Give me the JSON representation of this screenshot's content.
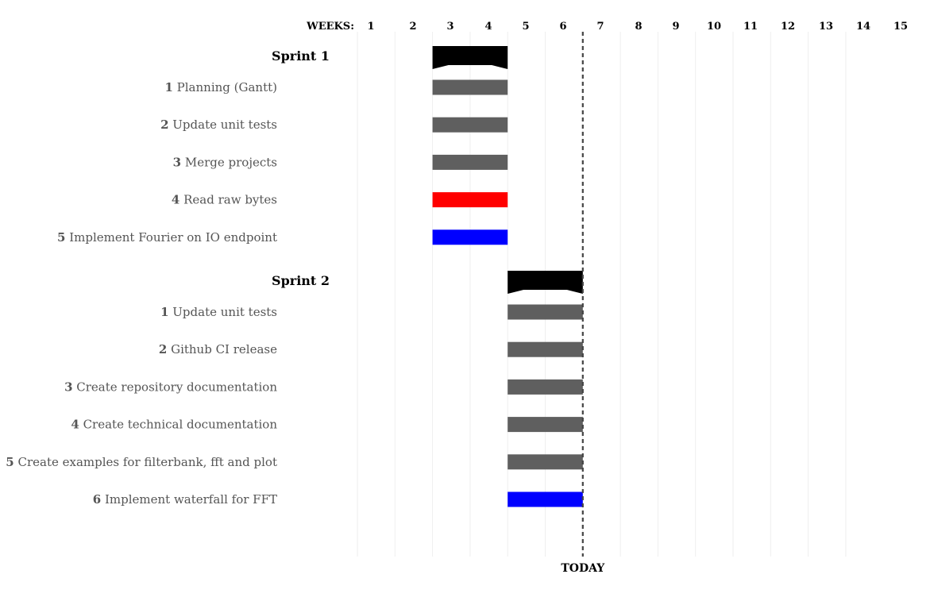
{
  "chart_data": {
    "type": "gantt",
    "x_axis_label": "WEEKS:",
    "weeks": [
      "1",
      "2",
      "3",
      "4",
      "5",
      "6",
      "7",
      "8",
      "9",
      "10",
      "11",
      "12",
      "13",
      "14",
      "15"
    ],
    "today": {
      "label": "TODAY",
      "week": 6.5
    },
    "colors": {
      "group": "#000000",
      "task": "#5f5f5f",
      "red": "#ff0000",
      "blue": "#0000ff",
      "grid": "#eeeeee",
      "today": "#444444"
    },
    "groups": [
      {
        "name": "Sprint 1",
        "start": 2.5,
        "end": 4.5,
        "tasks": [
          {
            "num": "1",
            "name": "Planning (Gantt)",
            "start": 2.5,
            "end": 4.5,
            "color": "#5f5f5f"
          },
          {
            "num": "2",
            "name": "Update unit tests",
            "start": 2.5,
            "end": 4.5,
            "color": "#5f5f5f"
          },
          {
            "num": "3",
            "name": "Merge projects",
            "start": 2.5,
            "end": 4.5,
            "color": "#5f5f5f"
          },
          {
            "num": "4",
            "name": "Read raw bytes",
            "start": 2.5,
            "end": 4.5,
            "color": "#ff0000"
          },
          {
            "num": "5",
            "name": "Implement Fourier on IO endpoint",
            "start": 2.5,
            "end": 4.5,
            "color": "#0000ff"
          }
        ]
      },
      {
        "name": "Sprint 2",
        "start": 4.5,
        "end": 6.5,
        "tasks": [
          {
            "num": "1",
            "name": "Update unit tests",
            "start": 4.5,
            "end": 6.5,
            "color": "#5f5f5f"
          },
          {
            "num": "2",
            "name": "Github CI release",
            "start": 4.5,
            "end": 6.5,
            "color": "#5f5f5f"
          },
          {
            "num": "3",
            "name": "Create repository documentation",
            "start": 4.5,
            "end": 6.5,
            "color": "#5f5f5f"
          },
          {
            "num": "4",
            "name": "Create technical documentation",
            "start": 4.5,
            "end": 6.5,
            "color": "#5f5f5f"
          },
          {
            "num": "5",
            "name": "Create examples for filterbank, fft and plot",
            "start": 4.5,
            "end": 6.5,
            "color": "#5f5f5f"
          },
          {
            "num": "6",
            "name": "Implement waterfall for FFT",
            "start": 4.5,
            "end": 6.5,
            "color": "#0000ff"
          }
        ]
      }
    ]
  }
}
